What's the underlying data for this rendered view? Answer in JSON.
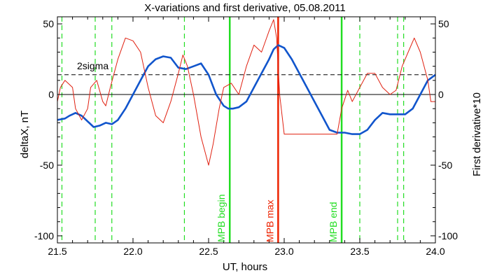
{
  "chart_data": {
    "type": "line",
    "title": "X-variations and first derivative, 05.08.2011",
    "xlabel": "UT, hours",
    "ylabel": "deltaX, nT",
    "ylabel_right": "First derivative*10",
    "xlim": [
      21.5,
      24.0
    ],
    "ylim": [
      -105,
      55
    ],
    "ylim_right": [
      -105,
      55
    ],
    "x_ticks": [
      "21.5",
      "22.0",
      "22.5",
      "23.0",
      "23.5",
      "24.0"
    ],
    "y_ticks": [
      "50",
      "0",
      "-50",
      "-100"
    ],
    "y_ticks_right": [
      "50",
      "0",
      "-50",
      "-100"
    ],
    "grid": false,
    "colors": {
      "deltaX": "#1155cc",
      "derivative": "#e02010",
      "mpb_lines": "#22dd22",
      "mpb_max": "#ee2200",
      "sigma_line": "#000000"
    },
    "series": [
      {
        "name": "deltaX, nT",
        "axis": "left",
        "x": [
          21.5,
          21.55,
          21.58,
          21.62,
          21.66,
          21.7,
          21.74,
          21.78,
          21.82,
          21.86,
          21.9,
          21.95,
          22.0,
          22.05,
          22.1,
          22.15,
          22.2,
          22.25,
          22.3,
          22.35,
          22.4,
          22.45,
          22.5,
          22.55,
          22.6,
          22.63,
          22.66,
          22.7,
          22.75,
          22.8,
          22.85,
          22.9,
          22.93,
          22.96,
          23.0,
          23.05,
          23.1,
          23.15,
          23.2,
          23.25,
          23.3,
          23.35,
          23.4,
          23.45,
          23.5,
          23.55,
          23.6,
          23.65,
          23.7,
          23.75,
          23.8,
          23.85,
          23.9,
          23.95,
          24.0
        ],
        "y": [
          -18,
          -17,
          -15,
          -13,
          -15,
          -19,
          -23,
          -22,
          -20,
          -21,
          -18,
          -10,
          0,
          10,
          20,
          25,
          27,
          26,
          19,
          18,
          20,
          22,
          14,
          0,
          -8,
          -10,
          -10,
          -9,
          -5,
          5,
          15,
          25,
          32,
          35,
          33,
          25,
          15,
          5,
          -5,
          -15,
          -25,
          -27,
          -27,
          -28,
          -28,
          -25,
          -18,
          -13,
          -14,
          -14,
          -14,
          -10,
          0,
          10,
          14
        ]
      },
      {
        "name": "First derivative*10",
        "axis": "right",
        "x": [
          21.5,
          21.52,
          21.55,
          21.6,
          21.62,
          21.66,
          21.7,
          21.72,
          21.76,
          21.8,
          21.82,
          21.85,
          21.9,
          21.95,
          22.0,
          22.05,
          22.08,
          22.1,
          22.15,
          22.2,
          22.25,
          22.3,
          22.33,
          22.36,
          22.4,
          22.45,
          22.5,
          22.53,
          22.57,
          22.6,
          22.65,
          22.7,
          22.75,
          22.8,
          22.85,
          22.9,
          22.93,
          22.95,
          22.97,
          23.0,
          23.1,
          23.2,
          23.3,
          23.35,
          23.38,
          23.42,
          23.45,
          23.5,
          23.55,
          23.6,
          23.65,
          23.7,
          23.74,
          23.78,
          23.82,
          23.86,
          23.9,
          23.95,
          23.97,
          24.0
        ],
        "y": [
          -5,
          5,
          10,
          5,
          -10,
          -18,
          -10,
          5,
          10,
          -5,
          -8,
          5,
          25,
          40,
          38,
          30,
          15,
          5,
          -15,
          -20,
          -5,
          15,
          28,
          20,
          0,
          -30,
          -50,
          -35,
          -10,
          5,
          8,
          0,
          20,
          35,
          30,
          45,
          53,
          40,
          0,
          -28,
          -28,
          -28,
          -28,
          -28,
          -10,
          3,
          -5,
          5,
          15,
          15,
          5,
          0,
          3,
          20,
          30,
          40,
          30,
          10,
          -5,
          -5
        ]
      }
    ],
    "hlines": [
      {
        "y": 14,
        "style": "dashed",
        "label": "2sigma"
      },
      {
        "y": 0,
        "style": "solid",
        "label": ""
      }
    ],
    "vlines": [
      {
        "x": 21.53,
        "style": "dashed",
        "color_key": "mpb_lines",
        "label": ""
      },
      {
        "x": 21.75,
        "style": "dashed",
        "color_key": "mpb_lines",
        "label": ""
      },
      {
        "x": 21.86,
        "style": "dashed",
        "color_key": "mpb_lines",
        "label": ""
      },
      {
        "x": 22.34,
        "style": "dashed",
        "color_key": "mpb_lines",
        "label": ""
      },
      {
        "x": 22.64,
        "style": "solid",
        "color_key": "mpb_lines",
        "label": "MPB begin"
      },
      {
        "x": 22.96,
        "style": "solid",
        "color_key": "mpb_max",
        "label": "MPB max"
      },
      {
        "x": 23.38,
        "style": "solid",
        "color_key": "mpb_lines",
        "label": "MPB end"
      },
      {
        "x": 23.5,
        "style": "dashed",
        "color_key": "mpb_lines",
        "label": ""
      },
      {
        "x": 23.75,
        "style": "dashed",
        "color_key": "mpb_lines",
        "label": ""
      },
      {
        "x": 23.79,
        "style": "dashed",
        "color_key": "mpb_lines",
        "label": ""
      }
    ]
  }
}
